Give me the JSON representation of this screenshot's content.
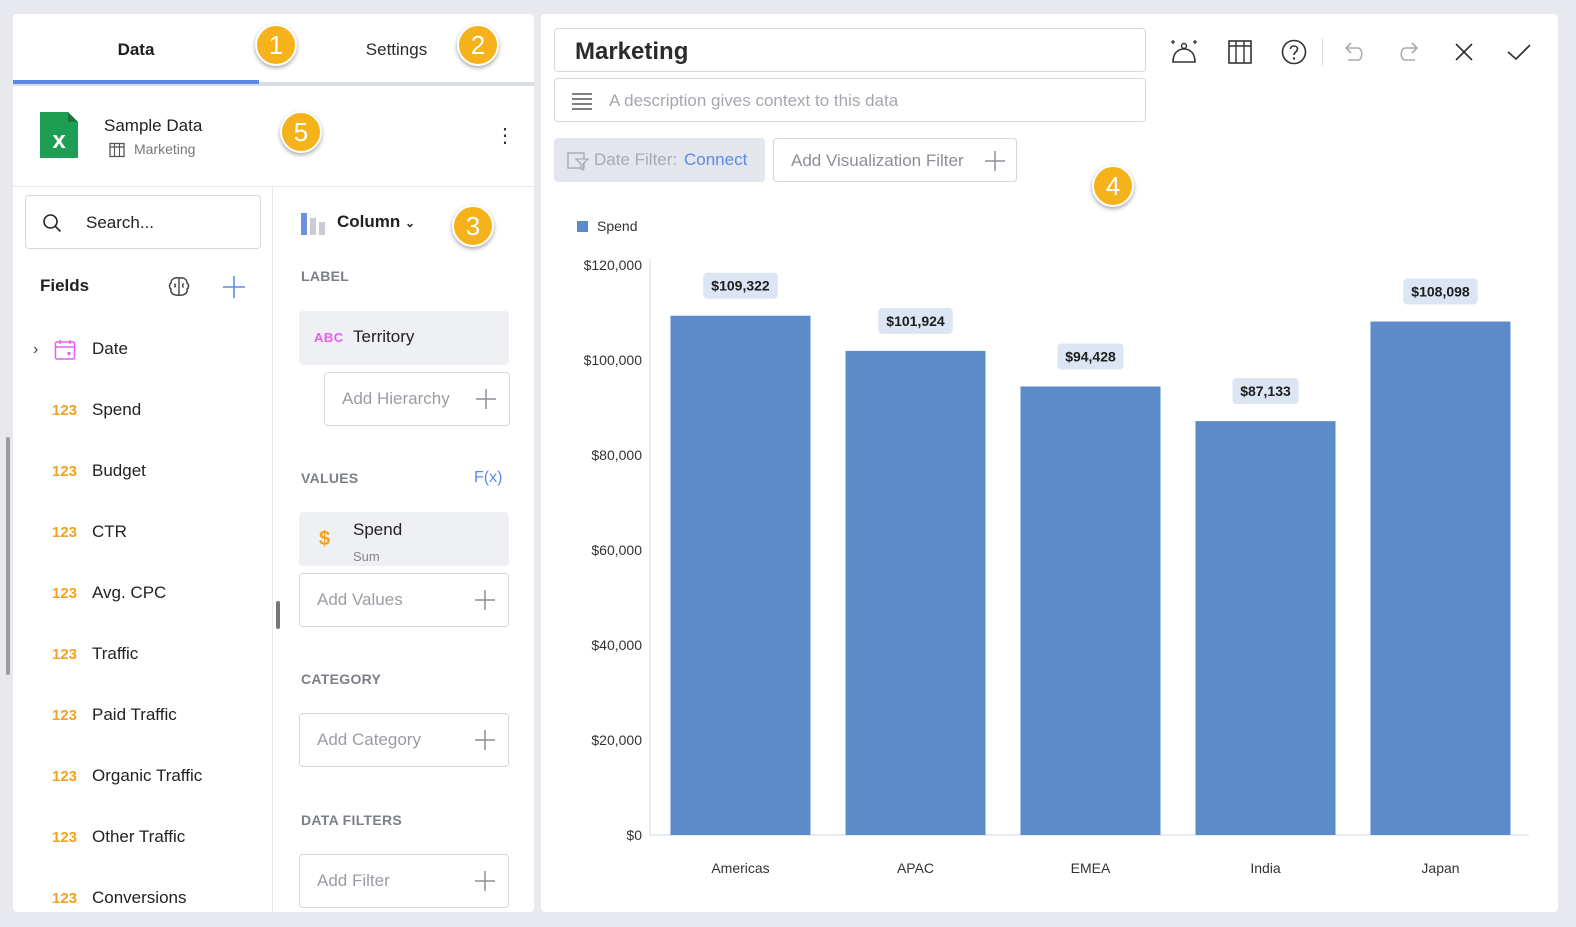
{
  "tabs": {
    "data": "Data",
    "settings": "Settings"
  },
  "datasource": {
    "name": "Sample Data",
    "sheet": "Marketing"
  },
  "search": {
    "placeholder": "Search..."
  },
  "fields": {
    "title": "Fields",
    "items": [
      {
        "type": "date",
        "label": "Date"
      },
      {
        "type": "123",
        "label": "Spend"
      },
      {
        "type": "123",
        "label": "Budget"
      },
      {
        "type": "123",
        "label": "CTR"
      },
      {
        "type": "123",
        "label": "Avg. CPC"
      },
      {
        "type": "123",
        "label": "Traffic"
      },
      {
        "type": "123",
        "label": "Paid Traffic"
      },
      {
        "type": "123",
        "label": "Organic Traffic"
      },
      {
        "type": "123",
        "label": "Other Traffic"
      },
      {
        "type": "123",
        "label": "Conversions"
      }
    ]
  },
  "config": {
    "chart_type": "Column",
    "label_section": "LABEL",
    "label_type": "ABC",
    "label_field": "Territory",
    "add_hierarchy": "Add Hierarchy",
    "values_section": "VALUES",
    "fx": "F(x)",
    "value_symbol": "$",
    "value_field": "Spend",
    "value_agg": "Sum",
    "add_values": "Add Values",
    "category_section": "CATEGORY",
    "add_category": "Add Category",
    "filters_section": "DATA FILTERS",
    "add_filter": "Add Filter"
  },
  "editor": {
    "title": "Marketing",
    "description_placeholder": "A description gives context to this data",
    "date_filter_label": "Date Filter:",
    "date_filter_action": "Connect",
    "add_viz_filter": "Add Visualization Filter"
  },
  "badges": [
    "1",
    "2",
    "3",
    "4",
    "5"
  ],
  "colors": {
    "accent": "#5a8ae6",
    "bar": "#5b8bc9",
    "badge": "#f6b21b",
    "number": "#f4a11d",
    "abc": "#e75df0"
  },
  "chart_data": {
    "type": "bar",
    "legend": "Spend",
    "categories": [
      "Americas",
      "APAC",
      "EMEA",
      "India",
      "Japan"
    ],
    "values": [
      109322,
      101924,
      94428,
      87133,
      108098
    ],
    "value_labels": [
      "$109,322",
      "$101,924",
      "$94,428",
      "$87,133",
      "$108,098"
    ],
    "ylim": [
      0,
      120000
    ],
    "yticks": [
      "$0",
      "$20,000",
      "$40,000",
      "$60,000",
      "$80,000",
      "$100,000",
      "$120,000"
    ],
    "legend_position": "top-left",
    "grid": false
  }
}
